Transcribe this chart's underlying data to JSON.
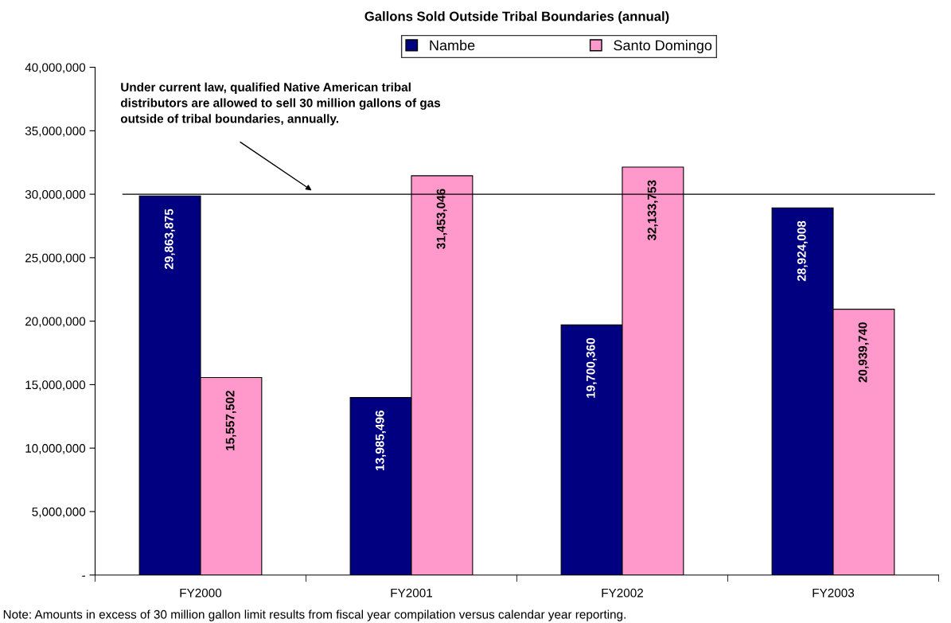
{
  "chart_data": {
    "type": "bar",
    "title": "Gallons Sold Outside Tribal Boundaries (annual)",
    "categories": [
      "FY2000",
      "FY2001",
      "FY2002",
      "FY2003"
    ],
    "series": [
      {
        "name": "Nambe",
        "color": "#000080",
        "values": [
          29863875,
          13985496,
          19700360,
          28924008
        ],
        "value_labels": [
          "29,863,875",
          "13,985,496",
          "19,700,360",
          "28,924,008"
        ]
      },
      {
        "name": "Santo Domingo",
        "color": "#ff99cc",
        "values": [
          15557502,
          31453046,
          32133753,
          20939740
        ],
        "value_labels": [
          "15,557,502",
          "31,453,046",
          "32,133,753",
          "20,939,740"
        ]
      }
    ],
    "ylim": [
      0,
      40000000
    ],
    "yticks": [
      {
        "value": 0,
        "label": "-"
      },
      {
        "value": 5000000,
        "label": "5,000,000"
      },
      {
        "value": 10000000,
        "label": "10,000,000"
      },
      {
        "value": 15000000,
        "label": "15,000,000"
      },
      {
        "value": 20000000,
        "label": "20,000,000"
      },
      {
        "value": 25000000,
        "label": "25,000,000"
      },
      {
        "value": 30000000,
        "label": "30,000,000"
      },
      {
        "value": 35000000,
        "label": "35,000,000"
      },
      {
        "value": 40000000,
        "label": "40,000,000"
      }
    ],
    "ref_lines": [
      {
        "axis": "y",
        "value": 30000000,
        "color": "#000000"
      }
    ],
    "annotations": [
      "Under current law, qualified Native American tribal\ndistributors are allowed to sell 30 million gallons of gas\noutside of tribal boundaries, annually.",
      "Note: Amounts in excess of 30 million gallon limit results from fiscal year compilation versus calendar year reporting."
    ],
    "legend": "top",
    "grid": false
  }
}
